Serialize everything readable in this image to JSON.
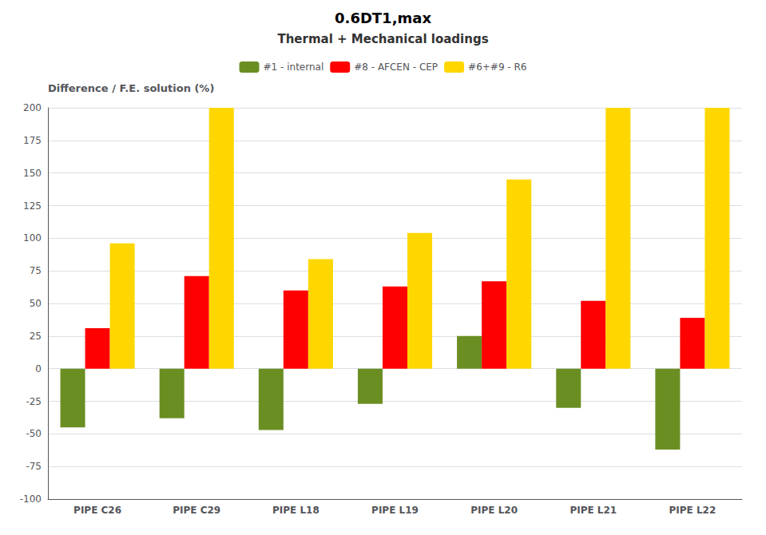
{
  "chart_data": {
    "type": "bar",
    "title": "0.6DT1,max",
    "subtitle": "Thermal + Mechanical loadings",
    "ylabel": "Difference / F.E. solution (%)",
    "categories": [
      "PIPE C26",
      "PIPE C29",
      "PIPE L18",
      "PIPE L19",
      "PIPE L20",
      "PIPE L21",
      "PIPE L22"
    ],
    "series": [
      {
        "name": "#1 - internal",
        "color": "#6b8e23",
        "values": [
          -45,
          -38,
          -47,
          -27,
          25,
          -30,
          -62
        ]
      },
      {
        "name": "#8 - AFCEN - CEP",
        "color": "#ff0000",
        "values": [
          31,
          71,
          60,
          63,
          67,
          52,
          39
        ]
      },
      {
        "name": "#6+#9 - R6",
        "color": "#ffd700",
        "values": [
          96,
          200,
          84,
          104,
          145,
          200,
          200
        ]
      }
    ],
    "ylim": [
      -100,
      200
    ],
    "yticks": [
      -100,
      -75,
      -50,
      -25,
      0,
      25,
      50,
      75,
      100,
      125,
      150,
      175,
      200
    ],
    "grid": true,
    "legend": "upper center"
  }
}
